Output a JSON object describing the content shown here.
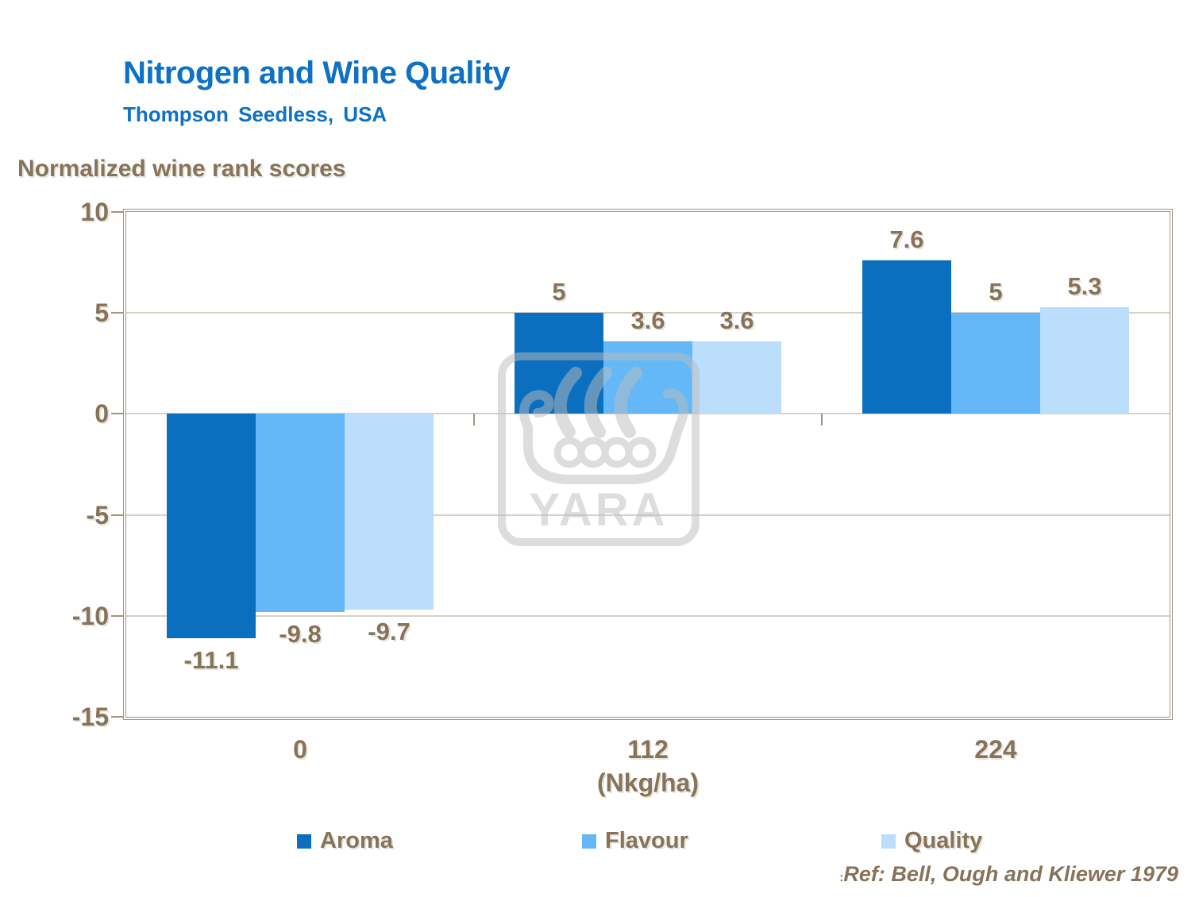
{
  "slide": {
    "title": "Nitrogen and Wine Quality",
    "subtitle": "Thompson Seedless, USA",
    "axis_title": "Normalized wine rank scores",
    "ref_prefix": ":",
    "ref_text": "Ref: Bell, Ough and Kliewer 1979",
    "watermark_label": "YARA"
  },
  "colors": {
    "title_blue": "#0E71C5",
    "text_taupe": "#86735A",
    "frame_taupe": "#A39480",
    "gridline": "#D8D1C6",
    "aroma_bar": "#0A6FBE",
    "flavour_bar": "#64B8F8",
    "quality_bar": "#BADEFB",
    "watermark_gray": "#BDBDBD"
  },
  "chart_data": {
    "type": "bar",
    "title": "Nitrogen and Wine Quality",
    "subtitle": "Thompson Seedless, USA",
    "ylabel": "Normalized wine rank scores",
    "xlabel": "(Nkg/ha)",
    "categories": [
      "0",
      "112",
      "224"
    ],
    "series": [
      {
        "name": "Aroma",
        "color": "#0A6FBE",
        "values": [
          -11.1,
          5,
          7.6
        ]
      },
      {
        "name": "Flavour",
        "color": "#64B8F8",
        "values": [
          -9.8,
          3.6,
          5
        ]
      },
      {
        "name": "Quality",
        "color": "#BADEFB",
        "values": [
          -9.7,
          3.6,
          5.3
        ]
      }
    ],
    "ylim": [
      -15,
      10
    ],
    "yticks": [
      10,
      5,
      0,
      -5,
      -10,
      -15
    ],
    "grid": true,
    "legend_position": "bottom",
    "annotation": "Ref: Bell, Ough and Kliewer 1979"
  }
}
